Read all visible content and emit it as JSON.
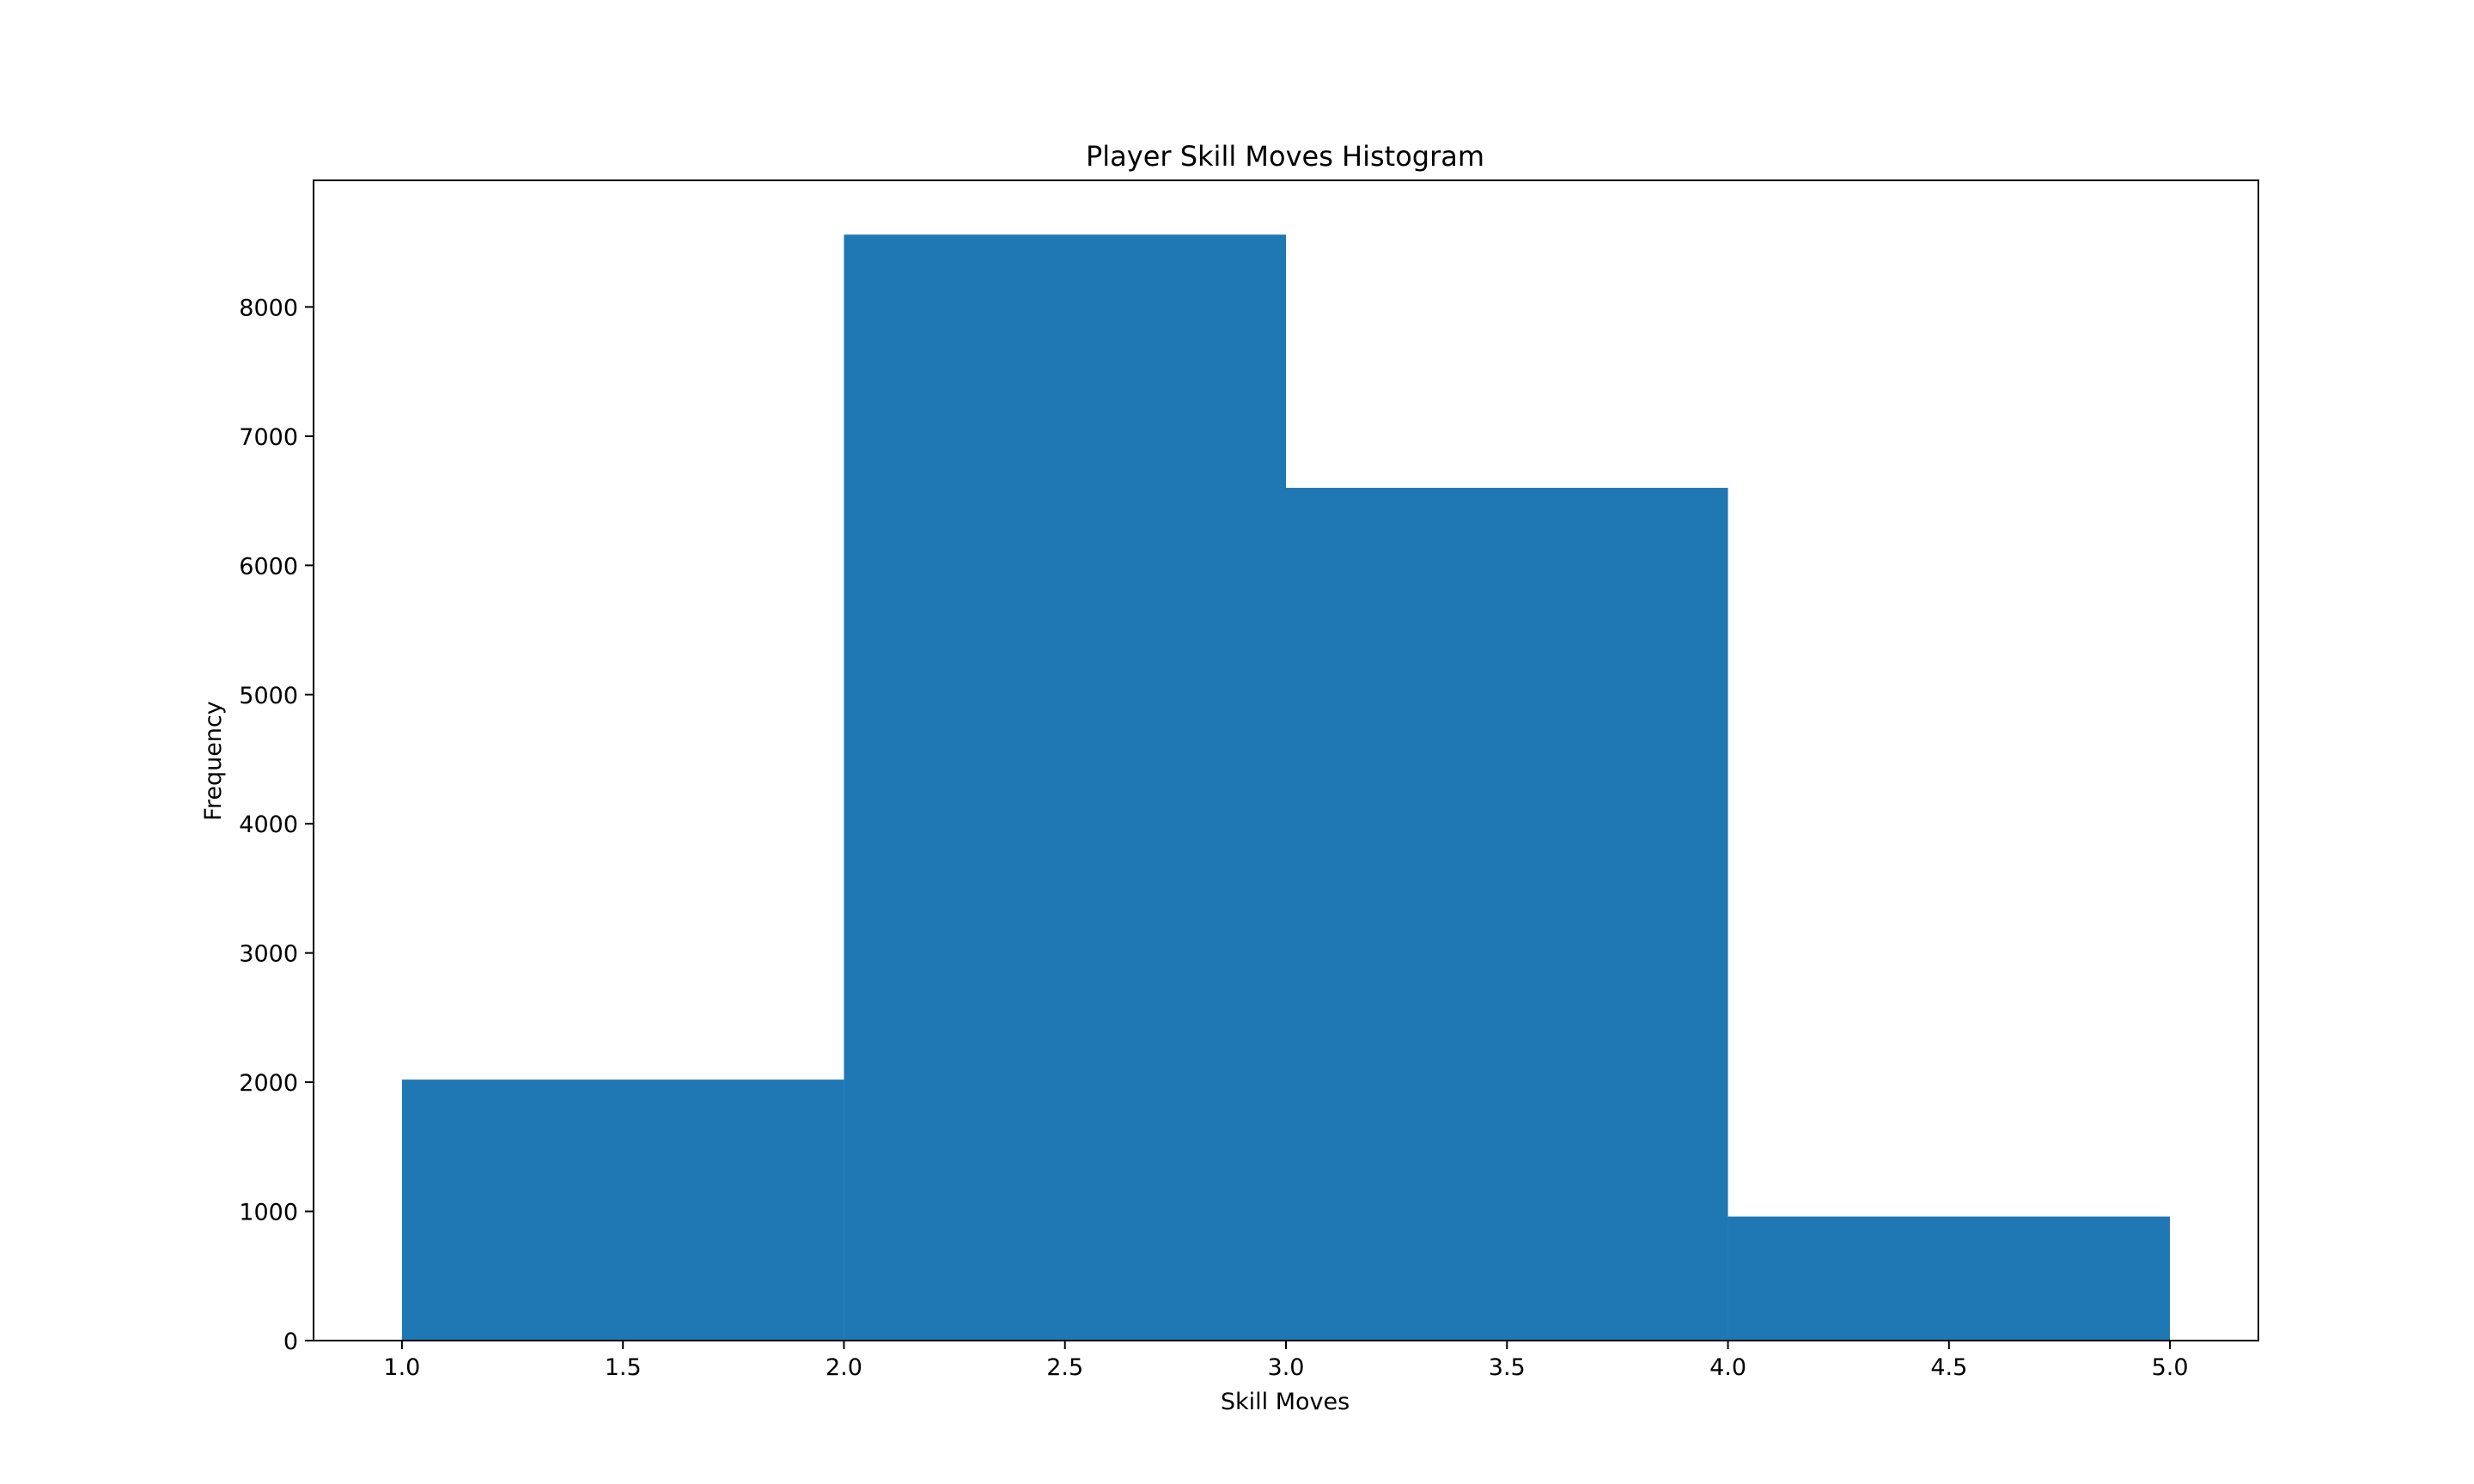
{
  "chart_data": {
    "type": "bar",
    "subtype": "histogram",
    "title": "Player Skill Moves Histogram",
    "xlabel": "Skill Moves",
    "ylabel": "Frequency",
    "bins": [
      {
        "x_start": 1.0,
        "x_end": 2.0,
        "value": 2020
      },
      {
        "x_start": 2.0,
        "x_end": 3.0,
        "value": 8560
      },
      {
        "x_start": 3.0,
        "x_end": 4.0,
        "value": 6600
      },
      {
        "x_start": 4.0,
        "x_end": 5.0,
        "value": 960
      }
    ],
    "xlim": [
      0.8,
      5.2
    ],
    "ylim": [
      0,
      8980
    ],
    "xticks": [
      1.0,
      1.5,
      2.0,
      2.5,
      3.0,
      3.5,
      4.0,
      4.5,
      5.0
    ],
    "xtick_labels": [
      "1.0",
      "1.5",
      "2.0",
      "2.5",
      "3.0",
      "3.5",
      "4.0",
      "4.5",
      "5.0"
    ],
    "yticks": [
      0,
      1000,
      2000,
      3000,
      4000,
      5000,
      6000,
      7000,
      8000
    ],
    "ytick_labels": [
      "0",
      "1000",
      "2000",
      "3000",
      "4000",
      "5000",
      "6000",
      "7000",
      "8000"
    ],
    "bar_color": "#1f77b4",
    "grid": false,
    "legend": false
  }
}
